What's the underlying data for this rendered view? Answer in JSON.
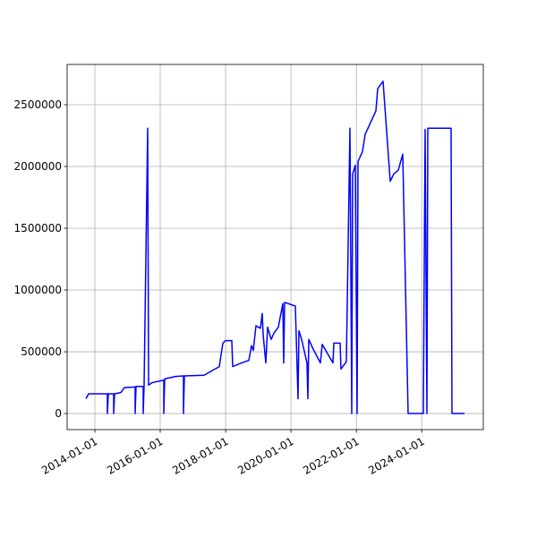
{
  "chart_data": {
    "type": "line",
    "x": [
      "2013-09-23",
      "2013-10-23",
      "2014-05-21",
      "2014-05-21",
      "2014-05-31",
      "2014-07-30",
      "2014-07-30",
      "2014-08-09",
      "2014-10-18",
      "2014-11-27",
      "2015-03-27",
      "2015-03-27",
      "2015-04-06",
      "2015-06-25",
      "2015-06-25",
      "2015-07-05",
      "2015-08-14",
      "2015-08-24",
      "2015-10-03",
      "2016-02-10",
      "2016-02-10",
      "2016-02-20",
      "2016-06-19",
      "2016-09-17",
      "2016-09-17",
      "2016-09-27",
      "2017-05-05",
      "2017-10-22",
      "2017-12-01",
      "2017-12-31",
      "2018-03-11",
      "2018-03-21",
      "2018-06-29",
      "2018-09-17",
      "2018-10-17",
      "2018-11-06",
      "2018-12-06",
      "2019-01-25",
      "2019-02-14",
      "2019-02-24",
      "2019-03-26",
      "2019-04-15",
      "2019-05-25",
      "2019-06-24",
      "2019-08-13",
      "2019-10-02",
      "2019-10-12",
      "2019-10-22",
      "2020-02-19",
      "2020-03-20",
      "2020-03-30",
      "2020-04-29",
      "2020-06-28",
      "2020-07-08",
      "2020-07-18",
      "2020-09-06",
      "2020-11-25",
      "2020-12-15",
      "2021-04-14",
      "2021-04-24",
      "2021-07-03",
      "2021-07-13",
      "2021-09-11",
      "2021-10-21",
      "2021-11-10",
      "2021-11-20",
      "2021-12-20",
      "2022-01-09",
      "2022-01-19",
      "2022-03-10",
      "2022-04-09",
      "2022-08-07",
      "2022-08-27",
      "2022-10-26",
      "2023-01-14",
      "2023-02-23",
      "2023-04-14",
      "2023-06-03",
      "2023-08-02",
      "2024-01-19",
      "2024-02-08",
      "2024-02-28",
      "2024-03-09",
      "2024-11-24",
      "2024-12-04",
      "2025-04-23"
    ],
    "series": [
      {
        "color": "#0000ff",
        "values": [
          120000,
          160000,
          160000,
          0,
          160000,
          160000,
          0,
          160000,
          170000,
          210000,
          215000,
          0,
          220000,
          220000,
          0,
          225000,
          2310000,
          230000,
          250000,
          270000,
          0,
          280000,
          300000,
          305000,
          0,
          305000,
          310000,
          380000,
          570000,
          590000,
          590000,
          380000,
          410000,
          430000,
          550000,
          510000,
          710000,
          690000,
          810000,
          640000,
          410000,
          700000,
          600000,
          650000,
          700000,
          890000,
          410000,
          900000,
          870000,
          120000,
          670000,
          600000,
          410000,
          120000,
          600000,
          520000,
          410000,
          560000,
          410000,
          570000,
          570000,
          360000,
          420000,
          2310000,
          0,
          1940000,
          2010000,
          0,
          2040000,
          2120000,
          2260000,
          2450000,
          2630000,
          2690000,
          1880000,
          1940000,
          1970000,
          2100000,
          0,
          0,
          2300000,
          0,
          2310000,
          2310000,
          0,
          0
        ]
      }
    ],
    "xlim": [
      "2013-02-25",
      "2025-11-19"
    ],
    "xticks": [
      "2014-01-01",
      "2016-01-01",
      "2018-01-01",
      "2020-01-01",
      "2022-01-01",
      "2024-01-01"
    ],
    "ylim": [
      -130000,
      2826000
    ],
    "yticks": [
      0,
      500000,
      1000000,
      1500000,
      2000000,
      2500000
    ],
    "grid": true
  }
}
